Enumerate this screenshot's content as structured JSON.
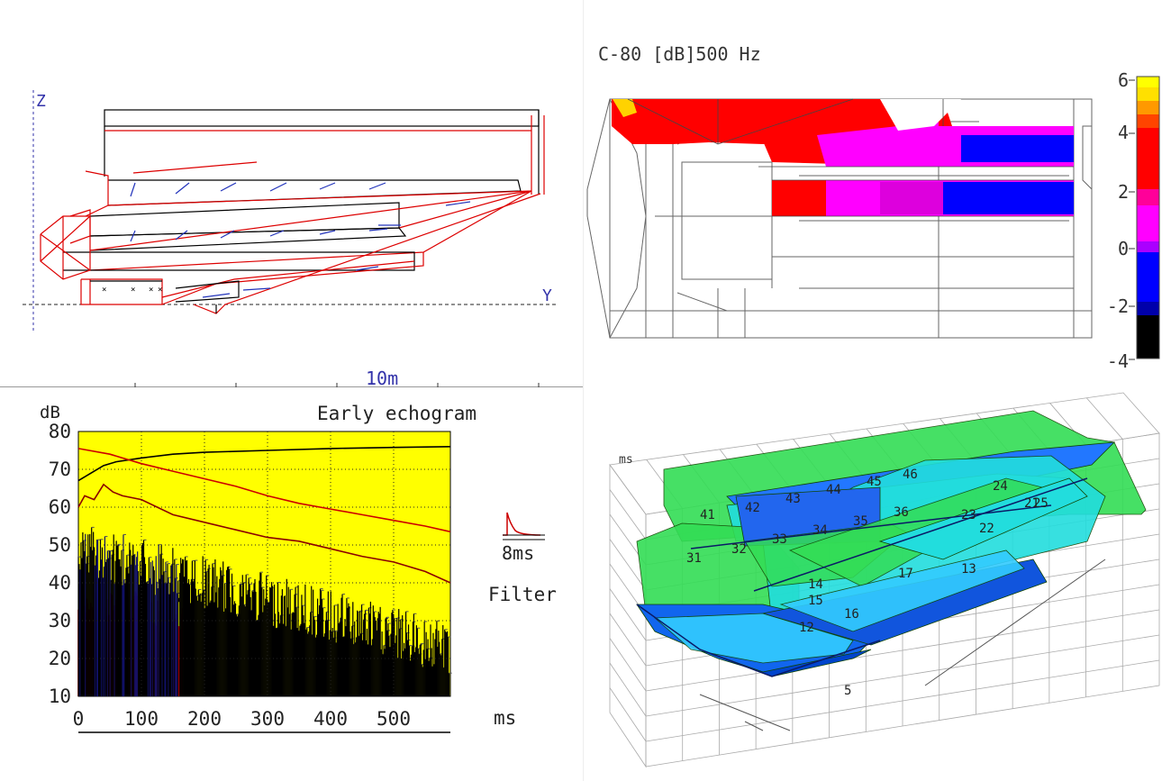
{
  "section_view": {
    "z_label": "Z",
    "y_label": "Y",
    "scale_label": "10m"
  },
  "map_panel": {
    "title": "C-80 [dB]500 Hz",
    "colorbar": {
      "ticks": [
        "6",
        "4",
        "2",
        "0",
        "-2",
        "-4"
      ],
      "colors": [
        "#ffff00",
        "#ff9900",
        "#ff0000",
        "#ff00ff",
        "#0000ff",
        "#000000"
      ]
    }
  },
  "echogram": {
    "title": "Early echogram",
    "y_unit": "dB",
    "x_unit": "ms",
    "filter_value": "8ms",
    "filter_label": "Filter",
    "background_color": "#ffff00"
  },
  "chart_data": {
    "type": "line",
    "title": "Early echogram",
    "xlabel": "ms",
    "ylabel": "dB",
    "xlim": [
      0,
      590
    ],
    "ylim": [
      10,
      80
    ],
    "x_ticks": [
      "0",
      "100",
      "200",
      "300",
      "400",
      "500"
    ],
    "y_ticks": [
      "80",
      "70",
      "60",
      "50",
      "40",
      "30",
      "20",
      "10"
    ],
    "grid": true,
    "series": [
      {
        "color": "#000000",
        "x": [
          0,
          20,
          40,
          60,
          100,
          150,
          200,
          300,
          400,
          500,
          590
        ],
        "y": [
          67,
          69,
          71,
          72,
          73,
          74,
          74.5,
          75,
          75.5,
          75.8,
          76
        ]
      },
      {
        "color": "#cc0000",
        "x": [
          0,
          50,
          100,
          150,
          200,
          250,
          300,
          350,
          400,
          450,
          500,
          550,
          590
        ],
        "y": [
          75.5,
          74,
          71.5,
          69.5,
          67.5,
          65.5,
          63,
          61,
          59.5,
          58,
          56.5,
          55,
          53.5
        ]
      },
      {
        "color": "#8b0000",
        "x": [
          0,
          10,
          25,
          40,
          55,
          70,
          100,
          150,
          200,
          250,
          300,
          350,
          400,
          450,
          500,
          550,
          590
        ],
        "y": [
          60,
          63,
          62,
          66,
          64,
          63,
          62,
          58,
          56,
          54,
          52,
          51,
          49,
          47,
          45.5,
          43,
          40
        ]
      }
    ]
  },
  "model_3d": {
    "axis_label": "ms",
    "zone_numbers": [
      "41",
      "42",
      "43",
      "44",
      "45",
      "46",
      "31",
      "32",
      "33",
      "34",
      "35",
      "36",
      "24",
      "23",
      "22",
      "21",
      "25",
      "13",
      "14",
      "15",
      "16",
      "17",
      "12",
      "5"
    ]
  }
}
